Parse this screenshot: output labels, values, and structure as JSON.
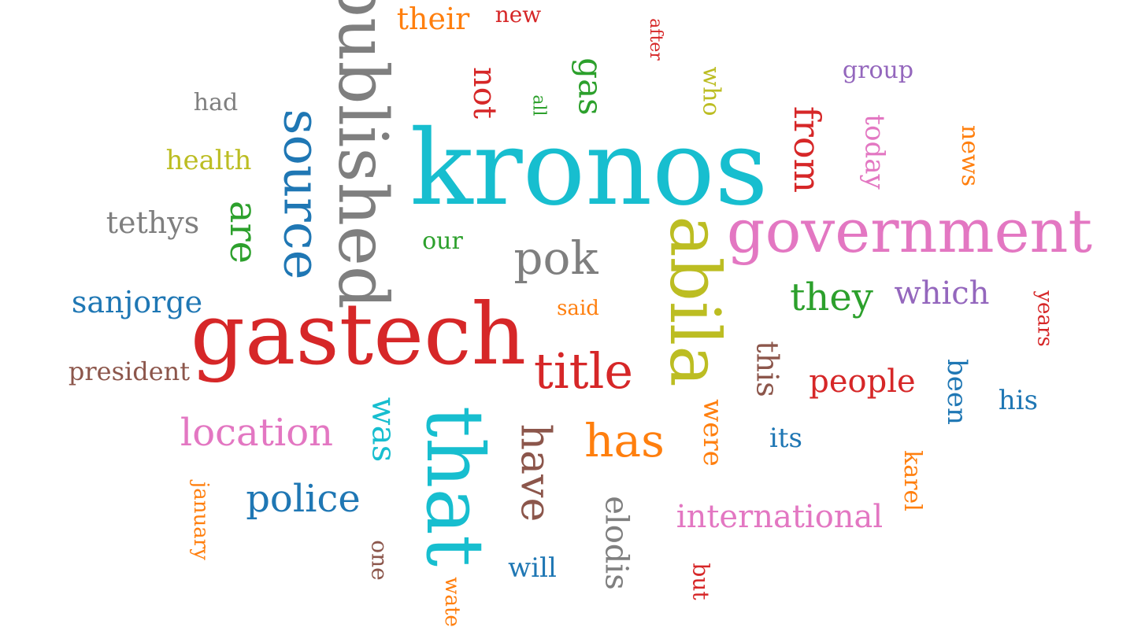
{
  "colors": {
    "blue": "#1f77b4",
    "orange": "#ff7f0e",
    "green": "#2ca02c",
    "red": "#d62728",
    "purple": "#9467bd",
    "brown": "#8c564b",
    "pink": "#e377c2",
    "gray": "#7f7f7f",
    "olive": "#bcbd22",
    "cyan": "#17becf"
  },
  "words": [
    {
      "text": "kronos",
      "color": "cyan",
      "rotated": false
    },
    {
      "text": "gastech",
      "color": "red",
      "rotated": false
    },
    {
      "text": "government",
      "color": "pink",
      "rotated": false
    },
    {
      "text": "abila",
      "color": "olive",
      "rotated": true
    },
    {
      "text": "that",
      "color": "cyan",
      "rotated": true
    },
    {
      "text": "published",
      "color": "gray",
      "rotated": true
    },
    {
      "text": "source",
      "color": "blue",
      "rotated": true
    },
    {
      "text": "title",
      "color": "red",
      "rotated": false
    },
    {
      "text": "pok",
      "color": "gray",
      "rotated": false
    },
    {
      "text": "has",
      "color": "orange",
      "rotated": false
    },
    {
      "text": "have",
      "color": "brown",
      "rotated": true
    },
    {
      "text": "they",
      "color": "green",
      "rotated": false
    },
    {
      "text": "location",
      "color": "pink",
      "rotated": false
    },
    {
      "text": "police",
      "color": "blue",
      "rotated": false
    },
    {
      "text": "from",
      "color": "red",
      "rotated": true
    },
    {
      "text": "are",
      "color": "green",
      "rotated": true
    },
    {
      "text": "which",
      "color": "purple",
      "rotated": false
    },
    {
      "text": "people",
      "color": "red",
      "rotated": false
    },
    {
      "text": "was",
      "color": "cyan",
      "rotated": true
    },
    {
      "text": "elodis",
      "color": "gray",
      "rotated": true
    },
    {
      "text": "international",
      "color": "pink",
      "rotated": false
    },
    {
      "text": "sanjorge",
      "color": "blue",
      "rotated": false
    },
    {
      "text": "tethys",
      "color": "gray",
      "rotated": false
    },
    {
      "text": "this",
      "color": "brown",
      "rotated": true
    },
    {
      "text": "their",
      "color": "orange",
      "rotated": false
    },
    {
      "text": "not",
      "color": "red",
      "rotated": true
    },
    {
      "text": "gas",
      "color": "green",
      "rotated": true
    },
    {
      "text": "been",
      "color": "blue",
      "rotated": true
    },
    {
      "text": "were",
      "color": "orange",
      "rotated": true
    },
    {
      "text": "today",
      "color": "pink",
      "rotated": true
    },
    {
      "text": "health",
      "color": "olive",
      "rotated": false
    },
    {
      "text": "president",
      "color": "brown",
      "rotated": false
    },
    {
      "text": "will",
      "color": "blue",
      "rotated": false
    },
    {
      "text": "its",
      "color": "blue",
      "rotated": false
    },
    {
      "text": "his",
      "color": "blue",
      "rotated": false
    },
    {
      "text": "who",
      "color": "olive",
      "rotated": true
    },
    {
      "text": "news",
      "color": "orange",
      "rotated": true
    },
    {
      "text": "karel",
      "color": "orange",
      "rotated": true
    },
    {
      "text": "group",
      "color": "purple",
      "rotated": false
    },
    {
      "text": "had",
      "color": "gray",
      "rotated": false
    },
    {
      "text": "our",
      "color": "green",
      "rotated": false
    },
    {
      "text": "one",
      "color": "brown",
      "rotated": true
    },
    {
      "text": "but",
      "color": "red",
      "rotated": true
    },
    {
      "text": "years",
      "color": "red",
      "rotated": true
    },
    {
      "text": "january",
      "color": "orange",
      "rotated": true
    },
    {
      "text": "new",
      "color": "red",
      "rotated": false
    },
    {
      "text": "after",
      "color": "red",
      "rotated": true
    },
    {
      "text": "said",
      "color": "orange",
      "rotated": false
    },
    {
      "text": "all",
      "color": "green",
      "rotated": true
    },
    {
      "text": "wate",
      "color": "orange",
      "rotated": true
    }
  ]
}
